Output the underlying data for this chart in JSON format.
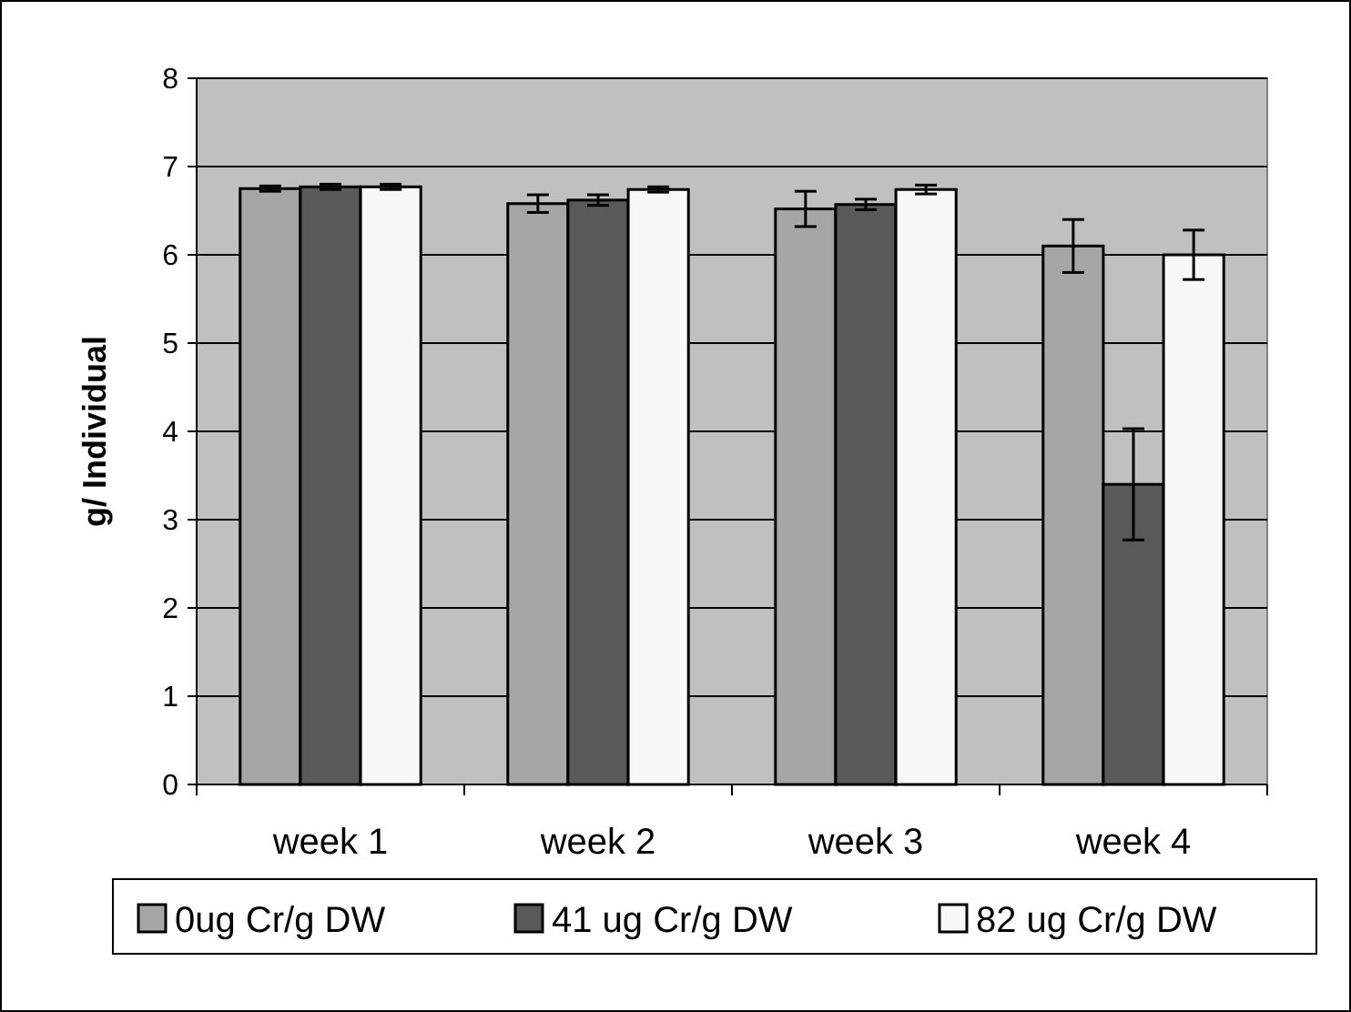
{
  "chart_data": {
    "type": "bar",
    "ylabel": "g/ Individual",
    "categories": [
      "week 1",
      "week 2",
      "week 3",
      "week 4"
    ],
    "series": [
      {
        "name": "0ug Cr/g DW",
        "color": "#a6a6a6",
        "values": [
          6.75,
          6.58,
          6.52,
          6.1
        ],
        "errors": [
          0.03,
          0.1,
          0.2,
          0.3
        ]
      },
      {
        "name": "41 ug Cr/g DW",
        "color": "#595959",
        "values": [
          6.77,
          6.62,
          6.57,
          3.4
        ],
        "errors": [
          0.03,
          0.06,
          0.06,
          0.63
        ]
      },
      {
        "name": "82 ug Cr/g DW",
        "color": "#f8f8f8",
        "values": [
          6.77,
          6.74,
          6.74,
          6.0
        ],
        "errors": [
          0.03,
          0.03,
          0.05,
          0.28
        ]
      }
    ],
    "ylim": [
      0,
      8
    ],
    "yticks": [
      0,
      1,
      2,
      3,
      4,
      5,
      6,
      7,
      8
    ],
    "grid": "y",
    "legend": "bottom"
  }
}
